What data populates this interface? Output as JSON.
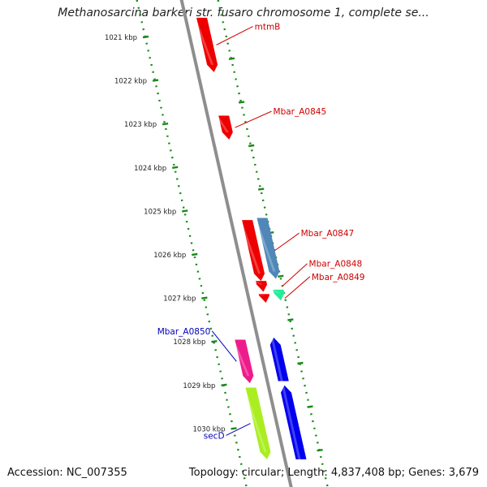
{
  "title": "Methanosarcina barkeri str. fusaro chromosome 1, complete se...",
  "footer": {
    "accession": "Accession: NC_007355",
    "topology": "Topology: circular; Length: 4,837,408 bp; Genes: 3,679"
  },
  "ruler": [
    {
      "label": "1021 kbp",
      "kbp": 1021
    },
    {
      "label": "1022 kbp",
      "kbp": 1022
    },
    {
      "label": "1023 kbp",
      "kbp": 1023
    },
    {
      "label": "1024 kbp",
      "kbp": 1024
    },
    {
      "label": "1025 kbp",
      "kbp": 1025
    },
    {
      "label": "1026 kbp",
      "kbp": 1026
    },
    {
      "label": "1027 kbp",
      "kbp": 1027
    },
    {
      "label": "1028 kbp",
      "kbp": 1028
    },
    {
      "label": "1029 kbp",
      "kbp": 1029
    },
    {
      "label": "1030 kbp",
      "kbp": 1030
    }
  ],
  "genes": [
    {
      "name": "mtmB",
      "start_kbp": 1020.55,
      "end_kbp": 1021.8,
      "strand": "-",
      "lane": 0,
      "color": "#ee0000",
      "label_color": "#cc0000"
    },
    {
      "name": "Mbar_A0845",
      "start_kbp": 1022.8,
      "end_kbp": 1023.35,
      "strand": "-",
      "lane": 0,
      "color": "#ee0000",
      "label_color": "#cc0000"
    },
    {
      "name": "Mbar_A0847",
      "start_kbp": 1025.2,
      "end_kbp": 1026.6,
      "strand": "-",
      "lane": 0,
      "color": "#ee0000",
      "label_color": "#cc0000"
    },
    {
      "name": "",
      "start_kbp": 1025.15,
      "end_kbp": 1026.55,
      "strand": "-",
      "lane": 1,
      "color": "#4f87b8",
      "label_color": "#4f87b8"
    },
    {
      "name": "Mbar_A0848",
      "start_kbp": 1026.6,
      "end_kbp": 1026.85,
      "strand": "-",
      "lane": 0,
      "color": "#ee0000",
      "label_color": "#cc0000"
    },
    {
      "name": "Mbar_A0849",
      "start_kbp": 1026.9,
      "end_kbp": 1027.1,
      "strand": "-",
      "lane": 0,
      "color": "#ee0000",
      "label_color": "#cc0000"
    },
    {
      "name": "",
      "start_kbp": 1026.8,
      "end_kbp": 1027.05,
      "strand": "-",
      "lane": 1,
      "color": "#22ee99",
      "label_color": "#22ee99"
    },
    {
      "name": "Mbar_A0850",
      "start_kbp": 1027.95,
      "end_kbp": 1028.95,
      "strand": "-",
      "lane": -1,
      "color": "#ee1b8c",
      "label_color": "#0000bb"
    },
    {
      "name": "",
      "start_kbp": 1027.9,
      "end_kbp": 1028.9,
      "strand": "+",
      "lane": 0,
      "color": "#0000ee",
      "label_color": "#0000bb"
    },
    {
      "name": "secD",
      "start_kbp": 1029.05,
      "end_kbp": 1030.7,
      "strand": "-",
      "lane": -1,
      "color": "#aaee22",
      "label_color": "#0000bb"
    },
    {
      "name": "",
      "start_kbp": 1029.0,
      "end_kbp": 1030.7,
      "strand": "+",
      "lane": 0,
      "color": "#0000ee",
      "label_color": "#0000bb"
    }
  ]
}
